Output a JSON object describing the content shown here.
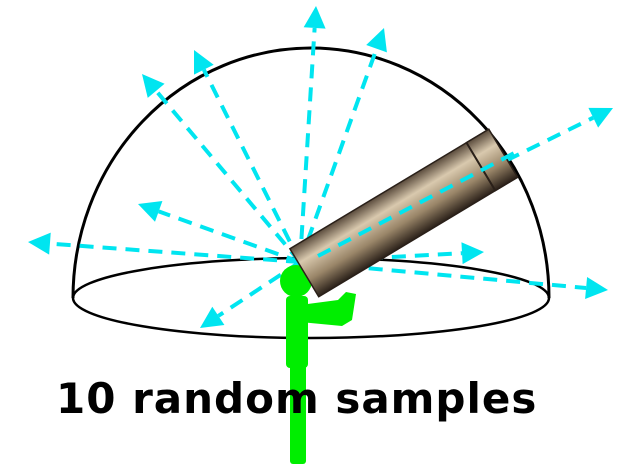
{
  "caption": "10 random samples",
  "colors": {
    "rays": "#00e5f0",
    "figure": "#00ee00",
    "hemisphere": "#000000",
    "telescope_light": "#c9b79a",
    "telescope_dark": "#3b3027",
    "background": "#ffffff"
  },
  "icons": [
    "hemisphere-outline",
    "ray-arrows",
    "observer-figure",
    "telescope-icon"
  ]
}
